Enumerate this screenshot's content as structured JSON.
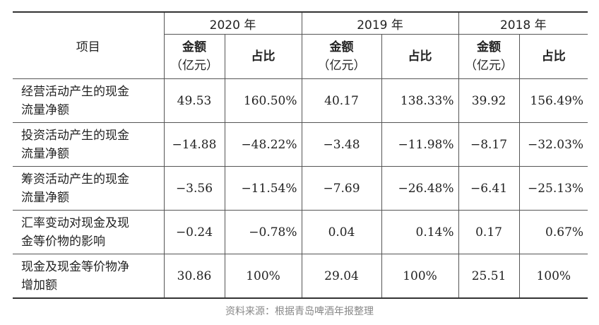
{
  "header": {
    "item_label": "项目",
    "years": [
      "2020 年",
      "2019 年",
      "2018 年"
    ],
    "amount_label": "金额",
    "amount_unit": "（亿元）",
    "share_label": "占比"
  },
  "rows": [
    {
      "label": [
        "经营活动产生的现金",
        "流量净额"
      ],
      "values": [
        "49.53",
        "160.50%",
        "40.17",
        "138.33%",
        "39.92",
        "156.49%"
      ]
    },
    {
      "label": [
        "投资活动产生的现金",
        "流量净额"
      ],
      "values": [
        "−14.88",
        "−48.22%",
        "−3.48",
        "−11.98%",
        "−8.17",
        "−32.03%"
      ]
    },
    {
      "label": [
        "筹资活动产生的现金",
        "流量净额"
      ],
      "values": [
        "−3.56",
        "−11.54%",
        "−7.69",
        "−26.48%",
        "−6.41",
        "−25.13%"
      ]
    },
    {
      "label": [
        "汇率变动对现金及现",
        "金等价物的影响"
      ],
      "values": [
        "−0.24",
        "−0.78%",
        "0.04",
        "0.14%",
        "0.17",
        "0.67%"
      ]
    },
    {
      "label": [
        "现金及现金等价物净",
        "增加额"
      ],
      "values": [
        "30.86",
        "100%",
        "29.04",
        "100%",
        "25.51",
        "100%"
      ]
    }
  ],
  "source": "资料来源：根据青岛啤酒年报整理"
}
